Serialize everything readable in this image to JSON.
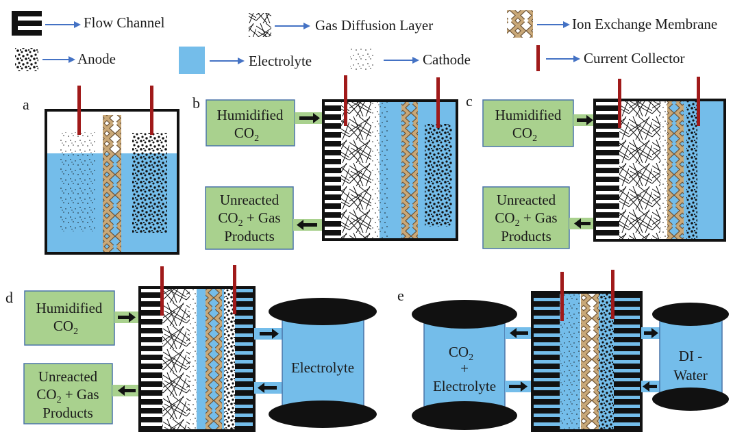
{
  "legend": {
    "flow_channel": "Flow Channel",
    "gas_diffusion_layer": "Gas Diffusion Layer",
    "ion_exchange_membrane": "Ion Exchange Membrane",
    "anode": "Anode",
    "electrolyte": "Electrolyte",
    "cathode": "Cathode",
    "current_collector": "Current Collector"
  },
  "panels": {
    "a": {
      "label": "a"
    },
    "b": {
      "label": "b",
      "inlet": {
        "line1": "Humidified",
        "line2": "CO",
        "sub": "2"
      },
      "outlet": {
        "line1": "Unreacted",
        "line2a": "CO",
        "sub": "2",
        "line2b": " + Gas",
        "line3": "Products"
      }
    },
    "c": {
      "label": "c",
      "inlet": {
        "line1": "Humidified",
        "line2": "CO",
        "sub": "2"
      },
      "outlet": {
        "line1": "Unreacted",
        "line2a": "CO",
        "sub": "2",
        "line2b": " + Gas",
        "line3": "Products"
      }
    },
    "d": {
      "label": "d",
      "inlet": {
        "line1": "Humidified",
        "line2": "CO",
        "sub": "2"
      },
      "outlet": {
        "line1": "Unreacted",
        "line2a": "CO",
        "sub": "2",
        "line2b": " + Gas",
        "line3": "Products"
      },
      "tank": "Electrolyte"
    },
    "e": {
      "label": "e",
      "left_tank": {
        "line1": "CO",
        "sub": "2",
        "line2": "+",
        "line3": "Electrolyte"
      },
      "right_tank": {
        "line1": "DI -",
        "line2": "Water"
      }
    }
  },
  "colors": {
    "electrolyte": "#74bdea",
    "box_fill": "#a9d18e",
    "box_stroke": "#4a74a8",
    "arrow_blue": "#4472c4",
    "collector": "#a01a1a",
    "membrane_fill": "#c9a878",
    "membrane_stroke": "#6b5236"
  },
  "icons": [
    "flow-channel-icon",
    "gas-diffusion-layer-icon",
    "ion-exchange-membrane-icon",
    "anode-icon",
    "electrolyte-icon",
    "cathode-icon",
    "current-collector-icon"
  ]
}
